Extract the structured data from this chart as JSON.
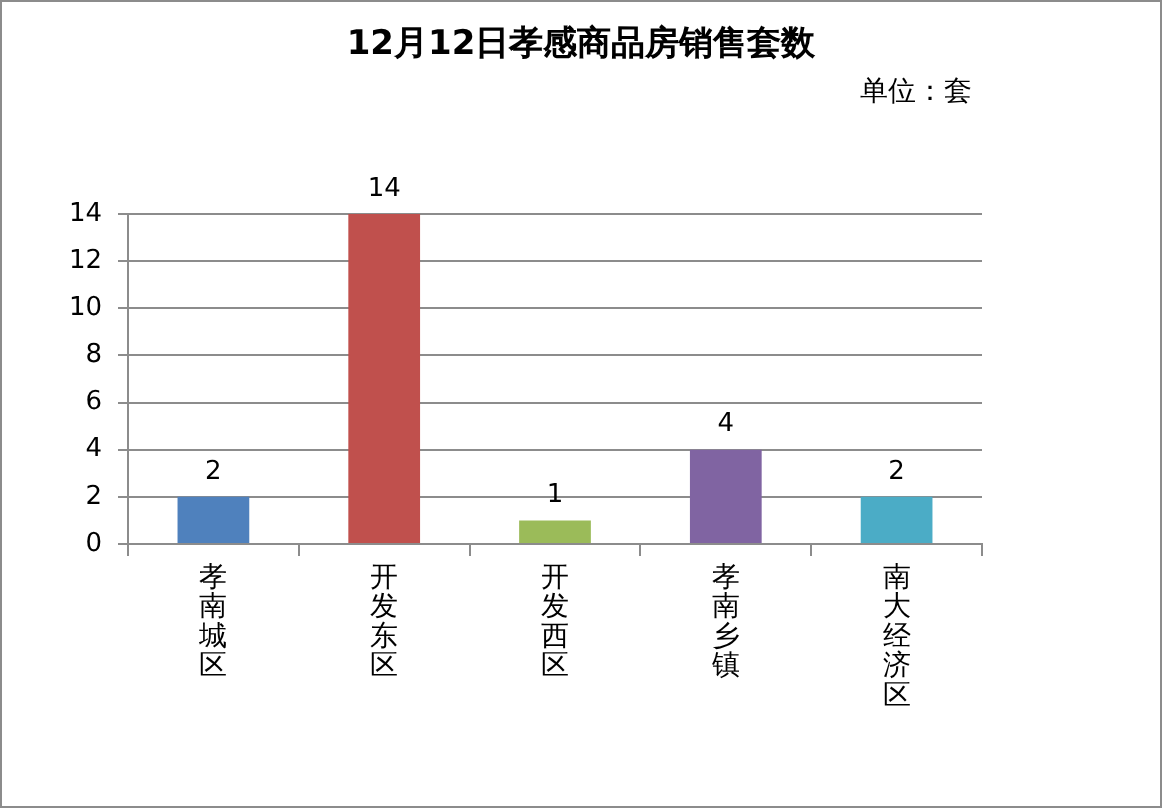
{
  "chart_data": {
    "type": "bar",
    "title": "12月12日孝感商品房销售套数",
    "annotations": [
      "单位：套"
    ],
    "categories": [
      "孝南城区",
      "开发东区",
      "开发西区",
      "孝南乡镇",
      "南大经济区"
    ],
    "values": [
      2,
      14,
      1,
      4,
      2
    ],
    "colors": [
      "#4f81bd",
      "#c0504d",
      "#9bbb59",
      "#8064a2",
      "#4bacc6"
    ],
    "ylim": [
      0,
      14
    ],
    "yticks": [
      0,
      2,
      4,
      6,
      8,
      10,
      12,
      14
    ],
    "grid": "y",
    "data_labels": true
  }
}
